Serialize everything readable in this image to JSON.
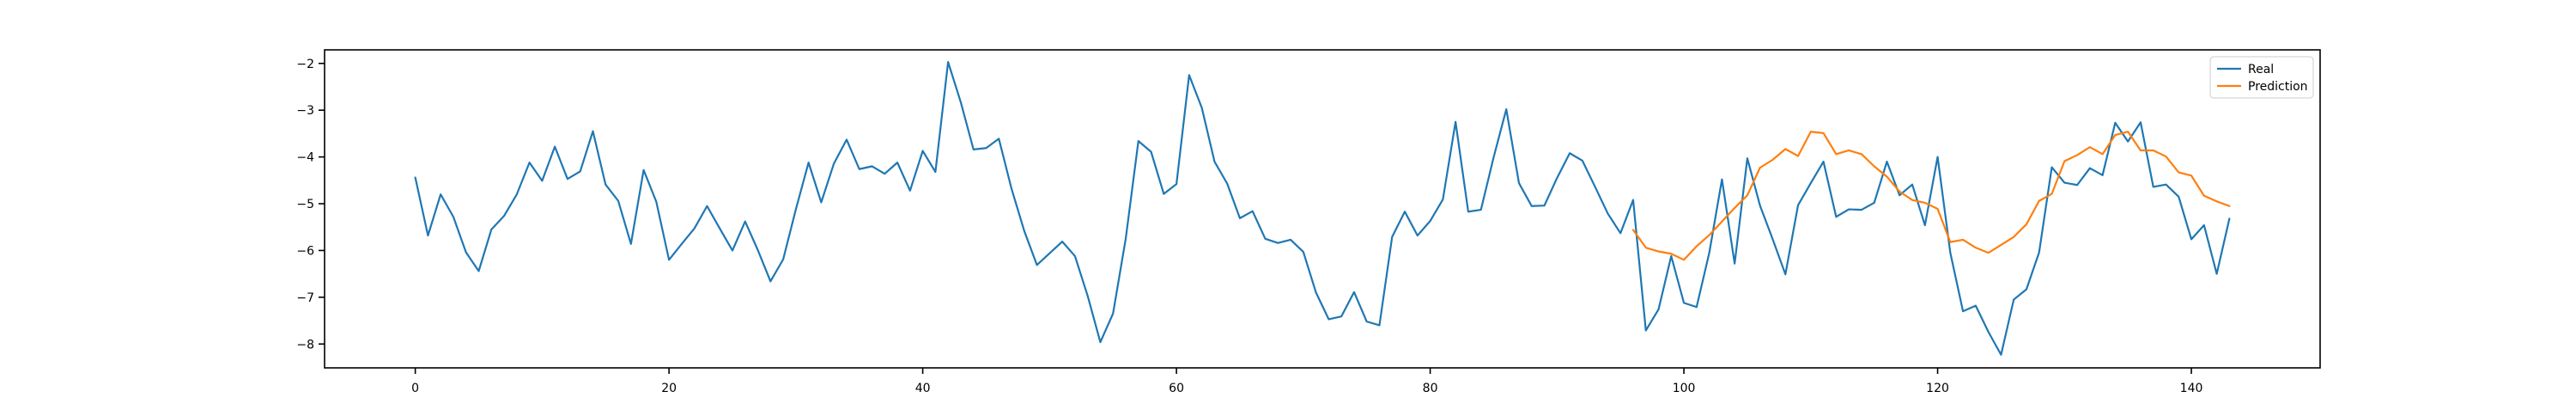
{
  "chart_data": {
    "type": "line",
    "title": "",
    "xlabel": "",
    "ylabel": "",
    "xlim": [
      -7.15,
      150.15
    ],
    "ylim": [
      -8.51,
      -1.71
    ],
    "xticks": [
      0,
      20,
      40,
      60,
      80,
      100,
      120,
      140
    ],
    "yticks": [
      -8,
      -7,
      -6,
      -5,
      -4,
      -3,
      -2
    ],
    "grid": false,
    "legend": {
      "placement": "top-right",
      "entries": [
        "Real",
        "Prediction"
      ]
    },
    "colors": {
      "Real": "#1f77b4",
      "Prediction": "#ff7f0e",
      "axes": "#000000"
    },
    "series": [
      {
        "name": "Real",
        "x_start": 0,
        "values": [
          -4.44,
          -5.68,
          -4.8,
          -5.28,
          -6.04,
          -6.44,
          -5.55,
          -5.26,
          -4.8,
          -4.12,
          -4.51,
          -3.78,
          -4.47,
          -4.31,
          -3.45,
          -4.59,
          -4.94,
          -5.86,
          -4.28,
          -4.96,
          -6.2,
          -5.86,
          -5.53,
          -5.05,
          -5.53,
          -6.0,
          -5.38,
          -5.99,
          -6.66,
          -6.19,
          -5.12,
          -4.12,
          -4.97,
          -4.14,
          -3.63,
          -4.26,
          -4.2,
          -4.36,
          -4.12,
          -4.72,
          -3.87,
          -4.32,
          -1.97,
          -2.83,
          -3.84,
          -3.81,
          -3.61,
          -4.68,
          -5.58,
          -6.31,
          -6.06,
          -5.81,
          -6.12,
          -6.97,
          -7.96,
          -7.35,
          -5.75,
          -3.66,
          -3.89,
          -4.79,
          -4.58,
          -2.25,
          -2.95,
          -4.1,
          -4.57,
          -5.31,
          -5.16,
          -5.75,
          -5.84,
          -5.77,
          -6.03,
          -6.9,
          -7.47,
          -7.41,
          -6.89,
          -7.52,
          -7.6,
          -5.71,
          -5.17,
          -5.68,
          -5.37,
          -4.91,
          -3.25,
          -5.17,
          -5.13,
          -4.01,
          -2.98,
          -4.56,
          -5.05,
          -5.04,
          -4.45,
          -3.92,
          -4.08,
          -4.64,
          -5.21,
          -5.63,
          -4.92,
          -7.71,
          -7.26,
          -6.12,
          -7.12,
          -7.21,
          -6.05,
          -4.48,
          -6.28,
          -4.03,
          -5.04,
          -5.76,
          -6.51,
          -5.03,
          -4.56,
          -4.1,
          -5.28,
          -5.12,
          -5.13,
          -4.98,
          -4.1,
          -4.82,
          -4.59,
          -5.46,
          -4.0,
          -6.05,
          -7.3,
          -7.18,
          -7.74,
          -8.23,
          -7.05,
          -6.83,
          -6.04,
          -4.22,
          -4.55,
          -4.6,
          -4.24,
          -4.39,
          -3.27,
          -3.67,
          -3.26,
          -4.64,
          -4.59,
          -4.85,
          -5.76,
          -5.46,
          -6.5,
          -5.32
        ]
      },
      {
        "name": "Prediction",
        "x_start": 96,
        "values": [
          -5.56,
          -5.94,
          -6.02,
          -6.07,
          -6.2,
          -5.91,
          -5.67,
          -5.38,
          -5.09,
          -4.82,
          -4.23,
          -4.06,
          -3.83,
          -3.98,
          -3.46,
          -3.49,
          -3.94,
          -3.86,
          -3.94,
          -4.2,
          -4.42,
          -4.74,
          -4.92,
          -4.98,
          -5.11,
          -5.82,
          -5.77,
          -5.94,
          -6.05,
          -5.88,
          -5.71,
          -5.44,
          -4.94,
          -4.79,
          -4.09,
          -3.96,
          -3.79,
          -3.94,
          -3.53,
          -3.46,
          -3.86,
          -3.86,
          -3.99,
          -4.33,
          -4.4,
          -4.83,
          -4.95,
          -5.05
        ]
      }
    ]
  }
}
